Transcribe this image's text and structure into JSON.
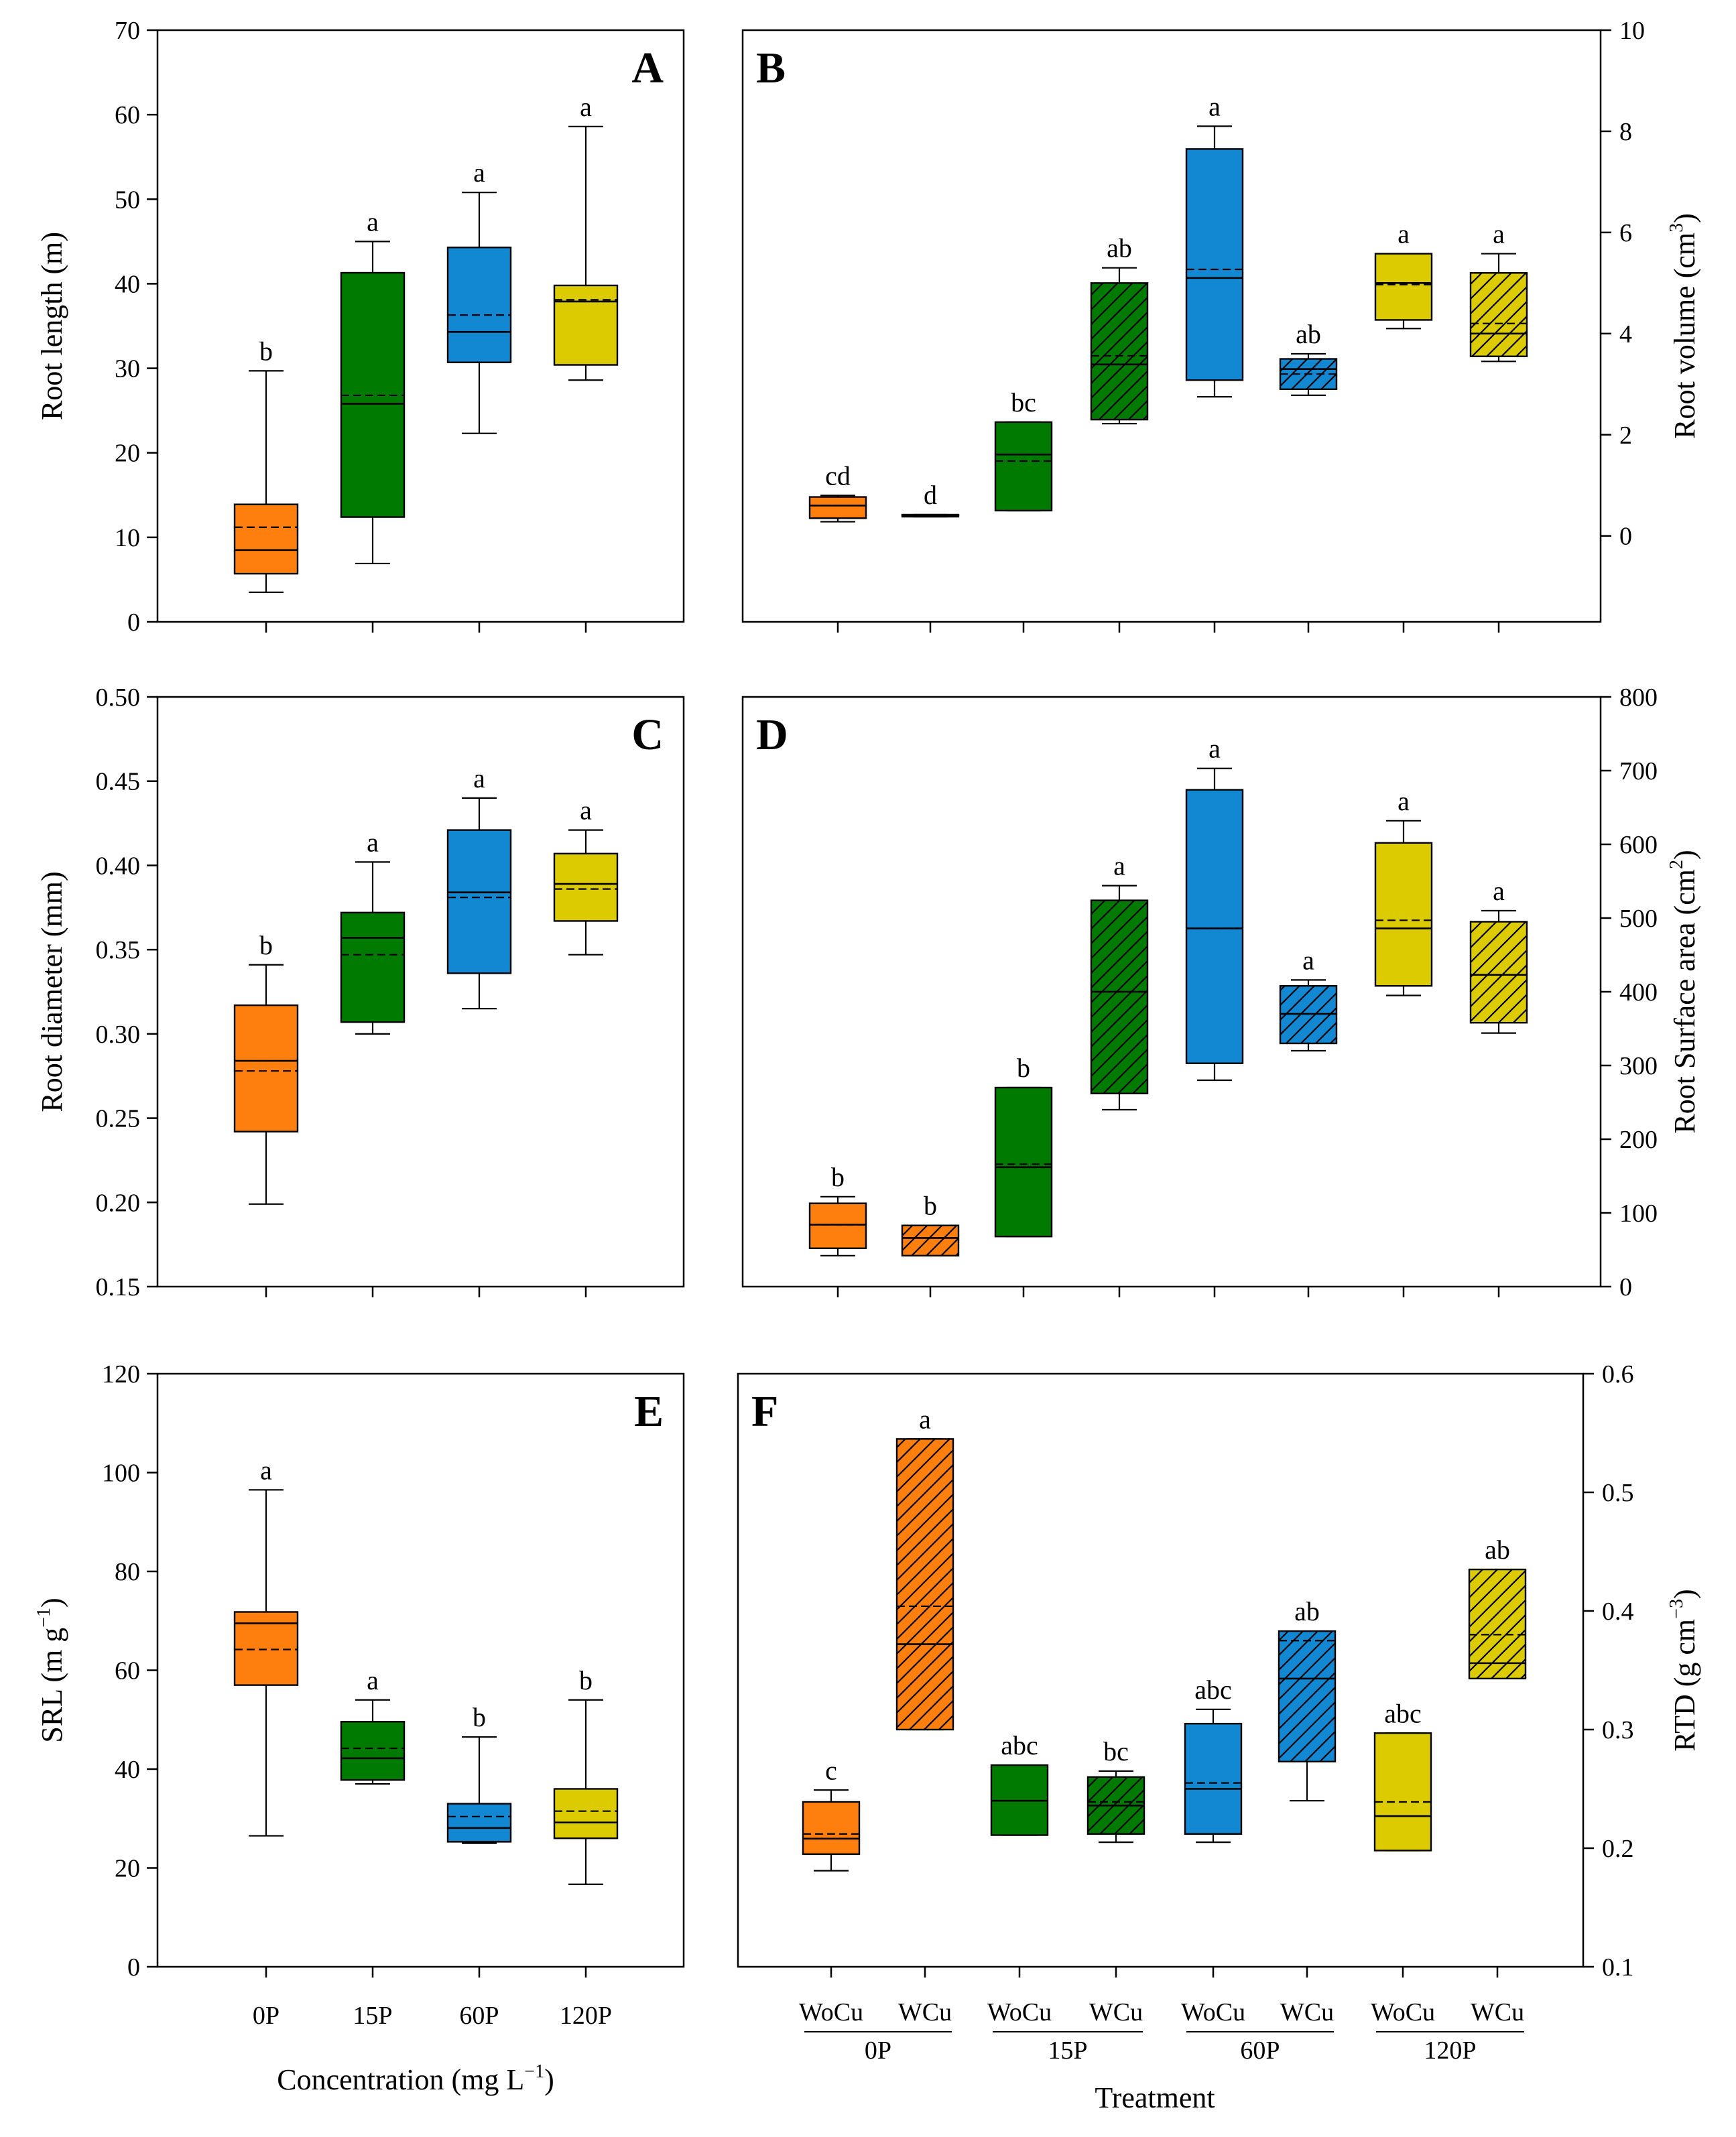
{
  "figure": {
    "xlabel_left": "Concentration (mg L",
    "xlabel_left_sup": "−1",
    "xlabel_left_end": ")",
    "xlabel_right": "Treatment",
    "left_categories": [
      "0P",
      "15P",
      "60P",
      "120P"
    ],
    "right_subcategories": [
      "WoCu",
      "WCu"
    ],
    "right_groups": [
      "0P",
      "15P",
      "60P",
      "120P"
    ]
  },
  "colors": {
    "0P": "#FF7F0E",
    "15P": "#007A00",
    "60P": "#1287D2",
    "120P": "#DCCB00"
  },
  "chart_data": [
    {
      "id": "A",
      "label": "A",
      "type": "box",
      "side": "left",
      "ylabel": "Root length (m)",
      "ylim": [
        0,
        70
      ],
      "yticks": [
        0,
        10,
        20,
        30,
        40,
        50,
        60,
        70
      ],
      "categories": [
        "0P",
        "15P",
        "60P",
        "120P"
      ],
      "boxes": [
        {
          "cat": "0P",
          "color": "0P",
          "hatch": false,
          "wl": 3.5,
          "q1": 5.7,
          "med": 8.5,
          "mean": 11.2,
          "q3": 13.9,
          "wh": 29.7,
          "sig": "b"
        },
        {
          "cat": "15P",
          "color": "15P",
          "hatch": false,
          "wl": 6.9,
          "q1": 12.4,
          "med": 25.8,
          "mean": 26.8,
          "q3": 41.3,
          "wh": 45.0,
          "sig": "a"
        },
        {
          "cat": "60P",
          "color": "60P",
          "hatch": false,
          "wl": 22.3,
          "q1": 30.7,
          "med": 34.3,
          "mean": 36.3,
          "q3": 44.3,
          "wh": 50.8,
          "sig": "a"
        },
        {
          "cat": "120P",
          "color": "120P",
          "hatch": false,
          "wl": 28.6,
          "q1": 30.4,
          "med": 37.9,
          "mean": 38.1,
          "q3": 39.8,
          "wh": 58.6,
          "sig": "a"
        }
      ]
    },
    {
      "id": "B",
      "label": "B",
      "type": "box",
      "side": "right",
      "ylabel": "Root volume (cm",
      "ylabel_sup": "3",
      "ylabel_end": ")",
      "ylim": [
        -1.7,
        10
      ],
      "yticks": [
        0,
        2,
        4,
        6,
        8,
        10
      ],
      "categories": [
        "WoCu",
        "WCu",
        "WoCu",
        "WCu",
        "WoCu",
        "WCu",
        "WoCu",
        "WCu"
      ],
      "boxes": [
        {
          "cat": "WoCu",
          "group": "0P",
          "color": "0P",
          "hatch": false,
          "wl": 0.28,
          "q1": 0.35,
          "med": 0.6,
          "mean": 0.6,
          "q3": 0.77,
          "wh": 0.8,
          "sig": "cd"
        },
        {
          "cat": "WCu",
          "group": "0P",
          "color": "0P",
          "hatch": true,
          "wl": 0.38,
          "q1": 0.38,
          "med": 0.4,
          "mean": 0.4,
          "q3": 0.42,
          "wh": 0.42,
          "sig": "d"
        },
        {
          "cat": "WoCu",
          "group": "15P",
          "color": "15P",
          "hatch": false,
          "wl": 0.5,
          "q1": 0.5,
          "med": 1.61,
          "mean": 1.48,
          "q3": 2.25,
          "wh": 2.25,
          "sig": "bc"
        },
        {
          "cat": "WCu",
          "group": "15P",
          "color": "15P",
          "hatch": true,
          "wl": 2.22,
          "q1": 2.3,
          "med": 3.39,
          "mean": 3.56,
          "q3": 5.0,
          "wh": 5.3,
          "sig": "ab"
        },
        {
          "cat": "WoCu",
          "group": "60P",
          "color": "60P",
          "hatch": false,
          "wl": 2.75,
          "q1": 3.08,
          "med": 5.1,
          "mean": 5.27,
          "q3": 7.65,
          "wh": 8.1,
          "sig": "a"
        },
        {
          "cat": "WCu",
          "group": "60P",
          "color": "60P",
          "hatch": true,
          "wl": 2.78,
          "q1": 2.9,
          "med": 3.3,
          "mean": 3.2,
          "q3": 3.5,
          "wh": 3.6,
          "sig": "ab"
        },
        {
          "cat": "WoCu",
          "group": "120P",
          "color": "120P",
          "hatch": false,
          "wl": 4.1,
          "q1": 4.27,
          "med": 5.0,
          "mean": 4.97,
          "q3": 5.58,
          "wh": 5.58,
          "sig": "a"
        },
        {
          "cat": "WCu",
          "group": "120P",
          "color": "120P",
          "hatch": true,
          "wl": 3.45,
          "q1": 3.55,
          "med": 4.0,
          "mean": 4.2,
          "q3": 5.2,
          "wh": 5.58,
          "sig": "a"
        }
      ]
    },
    {
      "id": "C",
      "label": "C",
      "type": "box",
      "side": "left",
      "ylabel": "Root diameter (mm)",
      "ylim": [
        0.15,
        0.5
      ],
      "yticks": [
        0.15,
        0.2,
        0.25,
        0.3,
        0.35,
        0.4,
        0.45,
        0.5
      ],
      "categories": [
        "0P",
        "15P",
        "60P",
        "120P"
      ],
      "boxes": [
        {
          "cat": "0P",
          "color": "0P",
          "hatch": false,
          "wl": 0.199,
          "q1": 0.242,
          "med": 0.284,
          "mean": 0.278,
          "q3": 0.317,
          "wh": 0.341,
          "sig": "b"
        },
        {
          "cat": "15P",
          "color": "15P",
          "hatch": false,
          "wl": 0.3,
          "q1": 0.307,
          "med": 0.357,
          "mean": 0.347,
          "q3": 0.372,
          "wh": 0.402,
          "sig": "a"
        },
        {
          "cat": "60P",
          "color": "60P",
          "hatch": false,
          "wl": 0.315,
          "q1": 0.336,
          "med": 0.384,
          "mean": 0.381,
          "q3": 0.421,
          "wh": 0.44,
          "sig": "a"
        },
        {
          "cat": "120P",
          "color": "120P",
          "hatch": false,
          "wl": 0.347,
          "q1": 0.367,
          "med": 0.389,
          "mean": 0.386,
          "q3": 0.407,
          "wh": 0.421,
          "sig": "a"
        }
      ]
    },
    {
      "id": "D",
      "label": "D",
      "type": "box",
      "side": "right",
      "ylabel": "Root Surface area (cm",
      "ylabel_sup": "2",
      "ylabel_end": ")",
      "ylim": [
        0,
        800
      ],
      "yticks": [
        0,
        100,
        200,
        300,
        400,
        500,
        600,
        700,
        800
      ],
      "categories": [
        "WoCu",
        "WCu",
        "WoCu",
        "WCu",
        "WoCu",
        "WCu",
        "WoCu",
        "WCu"
      ],
      "boxes": [
        {
          "cat": "WoCu",
          "group": "0P",
          "color": "0P",
          "hatch": false,
          "wl": 42,
          "q1": 52,
          "med": 84,
          "mean": 84,
          "q3": 113,
          "wh": 122,
          "sig": "b"
        },
        {
          "cat": "WCu",
          "group": "0P",
          "color": "0P",
          "hatch": true,
          "wl": 42,
          "q1": 42,
          "med": 66,
          "mean": 66,
          "q3": 83,
          "wh": 83,
          "sig": "b"
        },
        {
          "cat": "WoCu",
          "group": "15P",
          "color": "15P",
          "hatch": false,
          "wl": 68,
          "q1": 68,
          "med": 162,
          "mean": 166,
          "q3": 270,
          "wh": 270,
          "sig": "b"
        },
        {
          "cat": "WCu",
          "group": "15P",
          "color": "15P",
          "hatch": true,
          "wl": 240,
          "q1": 262,
          "med": 400,
          "mean": 400,
          "q3": 524,
          "wh": 544,
          "sig": "a"
        },
        {
          "cat": "WoCu",
          "group": "60P",
          "color": "60P",
          "hatch": false,
          "wl": 280,
          "q1": 303,
          "med": 486,
          "mean": 486,
          "q3": 674,
          "wh": 703,
          "sig": "a"
        },
        {
          "cat": "WCu",
          "group": "60P",
          "color": "60P",
          "hatch": true,
          "wl": 320,
          "q1": 330,
          "med": 370,
          "mean": 370,
          "q3": 408,
          "wh": 416,
          "sig": "a"
        },
        {
          "cat": "WoCu",
          "group": "120P",
          "color": "120P",
          "hatch": false,
          "wl": 395,
          "q1": 408,
          "med": 486,
          "mean": 497,
          "q3": 602,
          "wh": 632,
          "sig": "a"
        },
        {
          "cat": "WCu",
          "group": "120P",
          "color": "120P",
          "hatch": true,
          "wl": 344,
          "q1": 358,
          "med": 423,
          "mean": 423,
          "q3": 495,
          "wh": 510,
          "sig": "a"
        }
      ]
    },
    {
      "id": "E",
      "label": "E",
      "type": "box",
      "side": "left",
      "ylabel": "SRL (m g",
      "ylabel_sup": "−1",
      "ylabel_end": ")",
      "ylim": [
        0,
        120
      ],
      "yticks": [
        0,
        20,
        40,
        60,
        80,
        100,
        120
      ],
      "categories": [
        "0P",
        "15P",
        "60P",
        "120P"
      ],
      "boxes": [
        {
          "cat": "0P",
          "color": "0P",
          "hatch": false,
          "wl": 26.5,
          "q1": 57,
          "med": 69.5,
          "mean": 64.2,
          "q3": 71.8,
          "wh": 96.5,
          "sig": "a"
        },
        {
          "cat": "15P",
          "color": "15P",
          "hatch": false,
          "wl": 37,
          "q1": 37.8,
          "med": 42.2,
          "mean": 44.2,
          "q3": 49.6,
          "wh": 54,
          "sig": "a"
        },
        {
          "cat": "60P",
          "color": "60P",
          "hatch": false,
          "wl": 25,
          "q1": 25.3,
          "med": 28.1,
          "mean": 30.4,
          "q3": 33,
          "wh": 46.5,
          "sig": "b"
        },
        {
          "cat": "120P",
          "color": "120P",
          "hatch": false,
          "wl": 16.7,
          "q1": 26,
          "med": 29.2,
          "mean": 31.5,
          "q3": 36,
          "wh": 54,
          "sig": "b"
        }
      ]
    },
    {
      "id": "F",
      "label": "F",
      "type": "box",
      "side": "right",
      "ylabel": "RTD (g cm",
      "ylabel_sup": "−3",
      "ylabel_end": ")",
      "ylim": [
        0.1,
        0.6
      ],
      "yticks": [
        0.1,
        0.2,
        0.3,
        0.4,
        0.5,
        0.6
      ],
      "categories": [
        "WoCu",
        "WCu",
        "WoCu",
        "WCu",
        "WoCu",
        "WCu",
        "WoCu",
        "WCu"
      ],
      "boxes": [
        {
          "cat": "WoCu",
          "group": "0P",
          "color": "0P",
          "hatch": false,
          "wl": 0.181,
          "q1": 0.195,
          "med": 0.208,
          "mean": 0.212,
          "q3": 0.239,
          "wh": 0.249,
          "sig": "c"
        },
        {
          "cat": "WCu",
          "group": "0P",
          "color": "0P",
          "hatch": true,
          "wl": 0.3,
          "q1": 0.3,
          "med": 0.372,
          "mean": 0.404,
          "q3": 0.545,
          "wh": 0.545,
          "sig": "a"
        },
        {
          "cat": "WoCu",
          "group": "15P",
          "color": "15P",
          "hatch": false,
          "wl": 0.211,
          "q1": 0.211,
          "med": 0.24,
          "mean": 0.24,
          "q3": 0.27,
          "wh": 0.27,
          "sig": "abc"
        },
        {
          "cat": "WCu",
          "group": "15P",
          "color": "15P",
          "hatch": true,
          "wl": 0.205,
          "q1": 0.212,
          "med": 0.236,
          "mean": 0.239,
          "q3": 0.26,
          "wh": 0.265,
          "sig": "bc"
        },
        {
          "cat": "WoCu",
          "group": "60P",
          "color": "60P",
          "hatch": false,
          "wl": 0.205,
          "q1": 0.212,
          "med": 0.25,
          "mean": 0.255,
          "q3": 0.305,
          "wh": 0.317,
          "sig": "abc"
        },
        {
          "cat": "WCu",
          "group": "60P",
          "color": "60P",
          "hatch": true,
          "wl": 0.24,
          "q1": 0.273,
          "med": 0.343,
          "mean": 0.375,
          "q3": 0.383,
          "wh": 0.383,
          "sig": "ab"
        },
        {
          "cat": "WoCu",
          "group": "120P",
          "color": "120P",
          "hatch": false,
          "wl": 0.198,
          "q1": 0.198,
          "med": 0.227,
          "mean": 0.239,
          "q3": 0.297,
          "wh": 0.297,
          "sig": "abc"
        },
        {
          "cat": "WCu",
          "group": "120P",
          "color": "120P",
          "hatch": true,
          "wl": 0.343,
          "q1": 0.343,
          "med": 0.356,
          "mean": 0.38,
          "q3": 0.435,
          "wh": 0.435,
          "sig": "ab"
        }
      ]
    }
  ]
}
